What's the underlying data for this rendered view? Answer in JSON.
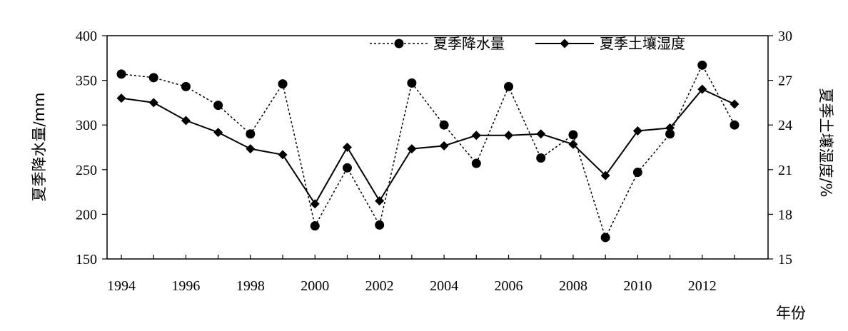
{
  "chart_data": {
    "type": "line",
    "xlabel": "年份",
    "ylabel": "夏季降水量/mm",
    "y2label": "夏季土壤湿度/%",
    "x": [
      1994,
      1995,
      1996,
      1997,
      1998,
      1999,
      2000,
      2001,
      2002,
      2003,
      2004,
      2005,
      2006,
      2007,
      2008,
      2009,
      2010,
      2011,
      2012,
      2013
    ],
    "x_tick_labels": [
      "1994",
      "1996",
      "1998",
      "2000",
      "2002",
      "2004",
      "2006",
      "2008",
      "2010",
      "2012"
    ],
    "ylim": [
      150,
      400
    ],
    "y_ticks": [
      "150",
      "200",
      "250",
      "300",
      "350",
      "400"
    ],
    "y2lim": [
      15,
      30
    ],
    "y2_ticks": [
      "15",
      "18",
      "21",
      "24",
      "27",
      "30"
    ],
    "legend_position": "top-right",
    "grid": false,
    "series": [
      {
        "name": "夏季降水量",
        "axis": "left",
        "style": "dotted",
        "marker": "circle",
        "values": [
          357,
          353,
          343,
          322,
          290,
          346,
          187,
          252,
          188,
          347,
          300,
          257,
          343,
          263,
          289,
          174,
          247,
          290,
          367,
          300
        ]
      },
      {
        "name": "夏季土壤湿度",
        "axis": "right",
        "style": "solid",
        "marker": "diamond",
        "values": [
          25.8,
          25.5,
          24.3,
          23.5,
          22.4,
          22.0,
          18.7,
          22.5,
          18.9,
          22.4,
          22.6,
          23.3,
          23.3,
          23.4,
          22.7,
          20.6,
          23.6,
          23.8,
          26.4,
          25.4
        ]
      }
    ]
  }
}
